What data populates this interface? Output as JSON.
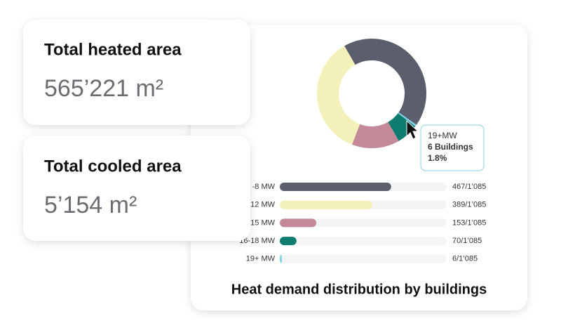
{
  "cards": [
    {
      "title": "Total heated area",
      "value": "565’221 m²"
    },
    {
      "title": "Total cooled area",
      "value": "5’154 m²"
    }
  ],
  "chart_data": {
    "type": "donut-bar",
    "title": "Heat demand distribution by buildings",
    "categories": [
      "-8 MW",
      "12 MW",
      "15 MW",
      "16-18 MW",
      "19+ MW"
    ],
    "values": [
      467,
      389,
      153,
      70,
      6
    ],
    "value_labels": [
      "467/1’085",
      "389/1’085",
      "153/1’085",
      "70/1’085",
      "6/1’085"
    ],
    "colors": [
      "#5b5f6d",
      "#f3f1b9",
      "#c38998",
      "#0f7c72",
      "#7fd0e6"
    ],
    "xlim": [
      0,
      700
    ],
    "tooltip": {
      "title": "19+MW",
      "count": "6 Buildings",
      "share": "1.8%"
    }
  }
}
